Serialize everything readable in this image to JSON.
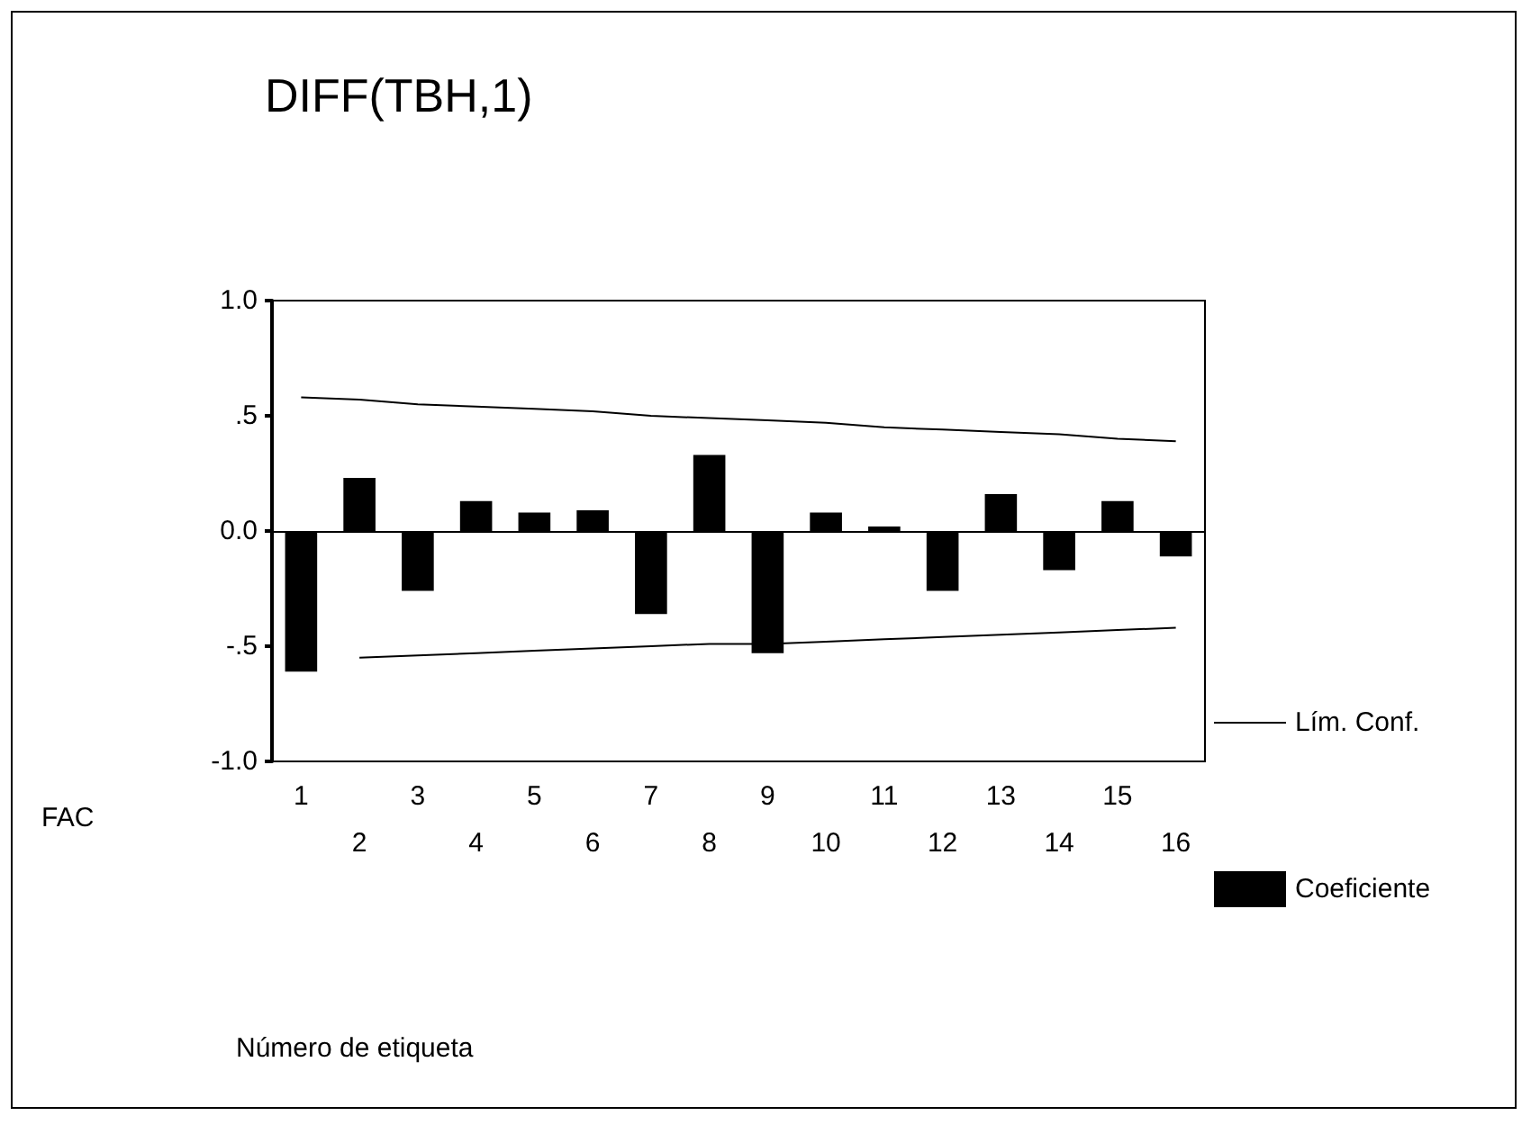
{
  "chart_data": {
    "type": "bar",
    "title": "DIFF(TBH,1)",
    "annotations": [
      "FAC",
      "Número de etiqueta"
    ],
    "categories": [
      "1",
      "2",
      "3",
      "4",
      "5",
      "6",
      "7",
      "8",
      "9",
      "10",
      "11",
      "12",
      "13",
      "14",
      "15",
      "16"
    ],
    "series": [
      {
        "name": "Coeficiente",
        "color": "#000000",
        "values": [
          -0.61,
          0.23,
          -0.26,
          0.13,
          0.08,
          0.09,
          -0.36,
          0.33,
          -0.53,
          0.08,
          0.02,
          -0.26,
          0.16,
          -0.17,
          0.13,
          -0.11
        ]
      },
      {
        "name": "Lím. Conf.",
        "type": "line",
        "color": "#000000",
        "values": [
          0.58,
          0.57,
          0.55,
          0.54,
          0.53,
          0.52,
          0.5,
          0.49,
          0.48,
          0.47,
          0.45,
          0.44,
          0.43,
          0.42,
          0.4,
          0.39
        ]
      },
      {
        "type": "line",
        "color": "#000000",
        "values": [
          null,
          -0.55,
          -0.54,
          -0.53,
          -0.52,
          -0.51,
          -0.5,
          -0.49,
          -0.49,
          -0.48,
          -0.47,
          -0.46,
          -0.45,
          -0.44,
          -0.43,
          -0.42
        ]
      }
    ],
    "ylim": [
      -1,
      1
    ],
    "yticks": [
      {
        "value": -1,
        "label": "-1.0"
      },
      {
        "value": -0.5,
        "label": "-.5"
      },
      {
        "value": 0,
        "label": "0.0"
      },
      {
        "value": 0.5,
        "label": ".5"
      },
      {
        "value": 1,
        "label": "1.0"
      }
    ],
    "legend": "right",
    "marker": "none",
    "line_style": "solid"
  }
}
